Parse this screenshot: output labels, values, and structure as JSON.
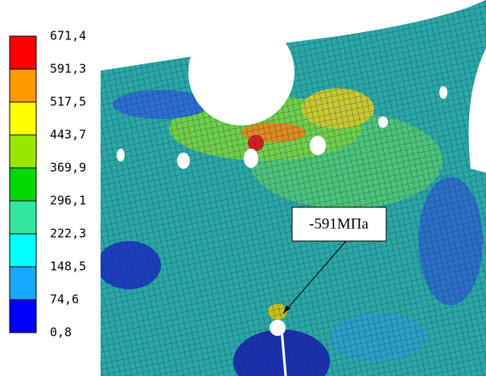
{
  "legend": {
    "labels": [
      "671,4",
      "591,3",
      "517,5",
      "443,7",
      "369,9",
      "296,1",
      "222,3",
      "148,5",
      "74,6",
      "0,8"
    ],
    "colors": [
      "#ff0000",
      "#ff9900",
      "#ffff00",
      "#99e600",
      "#00d800",
      "#33e6a0",
      "#00ffff",
      "#19a8ff",
      "#0000ff"
    ]
  },
  "annotation": "-591МПа"
}
